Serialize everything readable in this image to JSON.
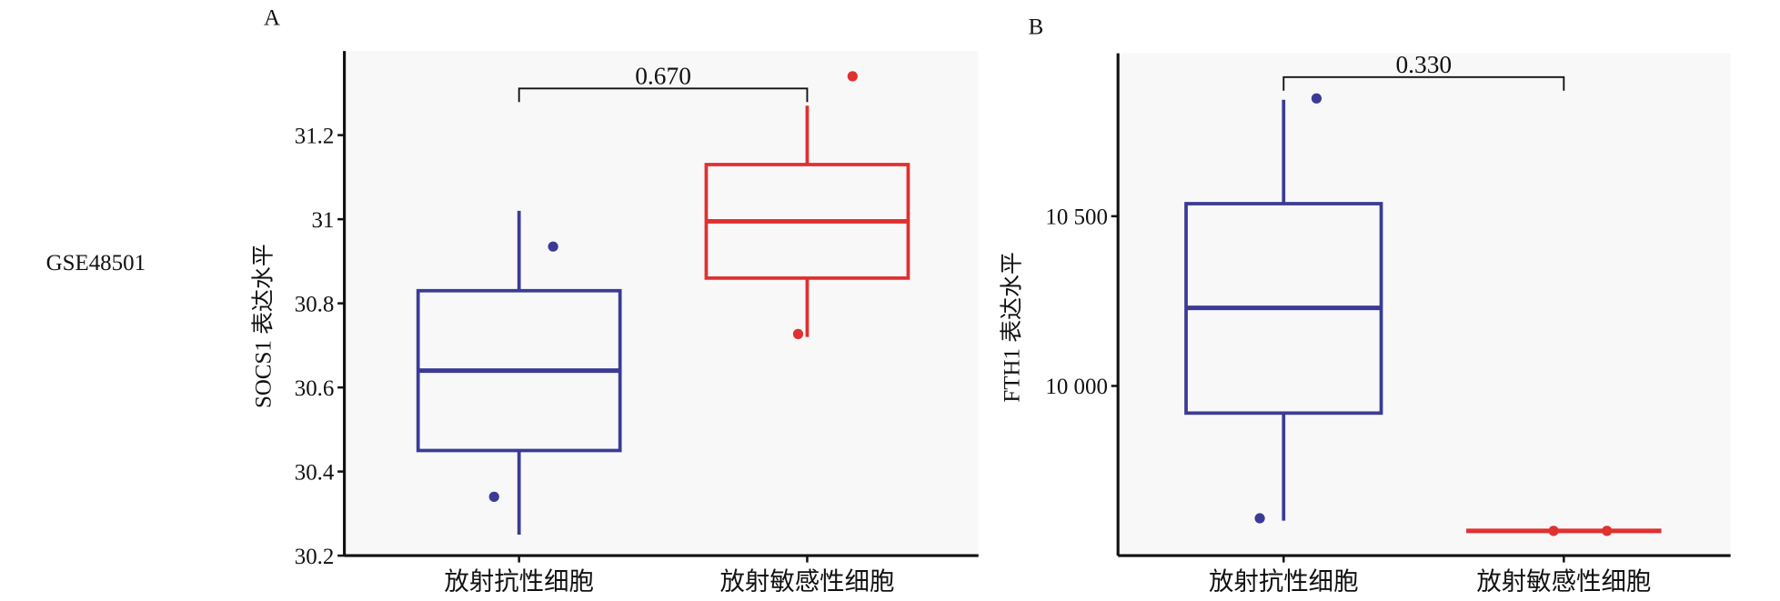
{
  "row_label": "GSE48501",
  "chart_data": [
    {
      "type": "box",
      "panel": "A",
      "ylabel": "SOCS1 表达水平",
      "categories": [
        "放射抗性细胞",
        "放射敏感性细胞"
      ],
      "ylim": [
        30.2,
        31.4
      ],
      "yticks": [
        30.2,
        30.4,
        30.6,
        30.8,
        31.0,
        31.2
      ],
      "boxes": [
        {
          "color": "#3b3b96",
          "whisker_low": 30.25,
          "q1": 30.45,
          "median": 30.64,
          "q3": 30.83,
          "whisker_high": 31.02,
          "outliers": [
            30.34,
            30.935
          ]
        },
        {
          "color": "#e03030",
          "whisker_low": 30.72,
          "q1": 30.86,
          "median": 30.995,
          "q3": 31.13,
          "whisker_high": 31.27,
          "outliers": [
            30.727,
            31.34
          ]
        }
      ],
      "p_value": "0.670"
    },
    {
      "type": "box",
      "panel": "B",
      "ylabel": "FTH1 表达水平",
      "categories": [
        "放射抗性细胞",
        "放射敏感性细胞"
      ],
      "ylim": [
        9500,
        10980
      ],
      "yticks": [
        {
          "value": 10000,
          "label": "10 000"
        },
        {
          "value": 10500,
          "label": "10 500"
        }
      ],
      "boxes": [
        {
          "color": "#3b3b96",
          "whisker_low": 9603,
          "q1": 9920,
          "median": 10230,
          "q3": 10537,
          "whisker_high": 10843,
          "outliers": [
            9610,
            10847
          ]
        },
        {
          "color": "#e03030",
          "whisker_low": 9570,
          "q1": 9573,
          "median": 9573,
          "q3": 9573,
          "whisker_high": 9576,
          "outliers": [
            9573,
            9573
          ]
        }
      ],
      "p_value": "0.330"
    }
  ]
}
